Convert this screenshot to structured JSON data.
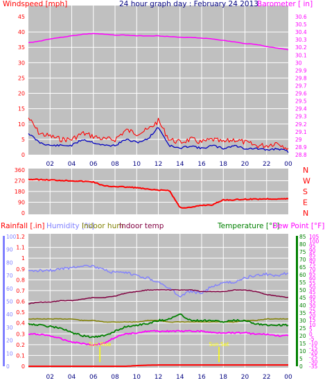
{
  "title": "24 hour graph day : February 24 2013",
  "colors": {
    "bg": "#ffffff",
    "plot": "#c0c0c0",
    "grid": "#ffffff",
    "wind_gust": "#ff0000",
    "wind_avg": "#0000c0",
    "barometer": "#ff00ff",
    "direction": "#ff0000",
    "rain": "#ff0000",
    "humidity": "#8080ff",
    "indoor_hum": "#808000",
    "indoor_temp": "#800040",
    "temperature": "#008000",
    "dew_point": "#ff00ff",
    "tick_text": "#000080",
    "sun_marker": "#ffff00"
  },
  "time_labels": [
    "02",
    "04",
    "06",
    "08",
    "10",
    "12",
    "14",
    "16",
    "18",
    "20",
    "22",
    "00"
  ],
  "wind_panel": {
    "left_label": "Windspeed [mph]",
    "right_label": "Barometer [ in]",
    "left_ticks": [
      "0",
      "5",
      "10",
      "15",
      "20",
      "25",
      "30",
      "35",
      "40",
      "45"
    ],
    "right_ticks": [
      "28.8",
      "28.9",
      "29",
      "29.1",
      "29.2",
      "29.3",
      "29.4",
      "29.5",
      "29.6",
      "29.7",
      "29.8",
      "29.9",
      "30",
      "30.1",
      "30.2",
      "30.3",
      "30.4",
      "30.5",
      "30.6"
    ]
  },
  "direction_panel": {
    "left_ticks": [
      "0",
      "90",
      "180",
      "270",
      "360"
    ],
    "compass": [
      "N",
      "W",
      "S",
      "E",
      "N"
    ]
  },
  "lower_panel": {
    "labels": {
      "rain": "Rainfall [.in]",
      "humidity": "Humidity [%]",
      "indoor_hum": "Indoor hum",
      "indoor_temp": "Indoor temp",
      "temperature": "Temperature [°F]",
      "dew_point": "Dew Point [°F]"
    },
    "rain_ticks": [
      "0",
      "0.1",
      "0.2",
      "0.3",
      "0.4",
      "0.5",
      "0.6",
      "0.7",
      "0.8",
      "0.9",
      "1",
      "1.1",
      "1.2"
    ],
    "hum_ticks": [
      "0",
      "10",
      "20",
      "30",
      "40",
      "50",
      "60",
      "70",
      "80",
      "90",
      "100"
    ],
    "temp_ticks": [
      "0",
      "5",
      "10",
      "15",
      "20",
      "25",
      "30",
      "35",
      "40",
      "45",
      "50",
      "55",
      "60",
      "65",
      "70",
      "75",
      "80",
      "85"
    ],
    "dew_ticks": [
      "-35",
      "-30",
      "-25",
      "-20",
      "-15",
      "-10",
      "-5",
      "0",
      "5",
      "10",
      "15",
      "20",
      "25",
      "30",
      "35",
      "40",
      "45",
      "50",
      "55",
      "60",
      "65",
      "70",
      "75",
      "80",
      "85",
      "90",
      "95",
      "100",
      "105"
    ],
    "sun_rise_label": "Sun Rise",
    "sun_set_label": "Sun Set",
    "sun_rise_hour": 6.6,
    "sun_set_hour": 17.6
  },
  "chart_data": [
    {
      "type": "line",
      "title": "24 hour graph day : February 24 2013",
      "xlabel": "",
      "x": [
        0,
        1,
        2,
        3,
        4,
        5,
        6,
        7,
        8,
        9,
        10,
        11,
        12,
        13,
        14,
        15,
        16,
        17,
        18,
        19,
        20,
        21,
        22,
        23,
        24
      ],
      "series": [
        {
          "name": "Windspeed",
          "axis": "wind",
          "values": [
            7,
            4,
            3,
            3,
            3,
            5,
            4,
            3,
            3,
            5,
            4,
            5,
            9,
            3,
            2,
            3,
            2,
            3,
            2,
            3,
            2,
            2,
            1.5,
            2,
            1
          ]
        },
        {
          "name": "Wind gust",
          "axis": "wind",
          "values": [
            12,
            7,
            6,
            5,
            5,
            7,
            6,
            5,
            5,
            8,
            7,
            8,
            11,
            5,
            4,
            5,
            4,
            5,
            4,
            5,
            4,
            3,
            3,
            4,
            2
          ]
        },
        {
          "name": "Barometer",
          "axis": "baro",
          "values": [
            30.26,
            30.28,
            30.31,
            30.33,
            30.35,
            30.37,
            30.38,
            30.37,
            30.36,
            30.36,
            30.35,
            30.35,
            30.35,
            30.34,
            30.33,
            30.33,
            30.32,
            30.31,
            30.29,
            30.27,
            30.25,
            30.24,
            30.21,
            30.19,
            30.17
          ]
        }
      ],
      "ylim_left": [
        0,
        45
      ],
      "ylim_right": [
        28.8,
        30.6
      ]
    },
    {
      "type": "line",
      "xlabel": "",
      "x": [
        0,
        2,
        4,
        6,
        7,
        8,
        10,
        11,
        12,
        13,
        14,
        15,
        16,
        17,
        18,
        19,
        20,
        22,
        24
      ],
      "series": [
        {
          "name": "Wind direction",
          "values": [
            282,
            276,
            270,
            260,
            225,
            222,
            212,
            198,
            190,
            190,
            45,
            45,
            65,
            68,
            110,
            110,
            115,
            118,
            118
          ]
        }
      ],
      "ylim": [
        0,
        360
      ]
    },
    {
      "type": "line",
      "xlabel": "",
      "x": [
        0,
        1,
        2,
        3,
        4,
        5,
        6,
        7,
        8,
        9,
        10,
        11,
        12,
        13,
        14,
        15,
        16,
        17,
        18,
        19,
        20,
        21,
        22,
        23,
        24
      ],
      "series": [
        {
          "name": "Humidity",
          "axis": "hum",
          "values": [
            73,
            74,
            74,
            75,
            76,
            78,
            77,
            74,
            72,
            72,
            70,
            68,
            65,
            60,
            54,
            58,
            56,
            62,
            64,
            65,
            68,
            70,
            71,
            70,
            72
          ]
        },
        {
          "name": "Indoor hum",
          "axis": "temp",
          "values": [
            31,
            31,
            31,
            31,
            31,
            30,
            30,
            29,
            29,
            29,
            29,
            30,
            30,
            29,
            29,
            29,
            29,
            29,
            29,
            29,
            30,
            30,
            31,
            31,
            31
          ]
        },
        {
          "name": "Indoor temp",
          "axis": "temp",
          "values": [
            41,
            42,
            42,
            43,
            43,
            44,
            45,
            45,
            46,
            48,
            49,
            50,
            50,
            50,
            50,
            50,
            49,
            49,
            49,
            50,
            50,
            49,
            47,
            46,
            45
          ]
        },
        {
          "name": "Temperature",
          "axis": "temp",
          "values": [
            28,
            27,
            26,
            25,
            22,
            20,
            19,
            20,
            23,
            26,
            27,
            28,
            30,
            31,
            34,
            30,
            30,
            30,
            29,
            30,
            30,
            28,
            27,
            27,
            27
          ]
        },
        {
          "name": "Dew Point",
          "axis": "temp",
          "values": [
            21,
            21,
            20,
            18,
            16,
            15,
            14,
            15,
            19,
            21,
            22,
            23,
            23,
            23,
            23,
            23,
            23,
            22,
            22,
            22,
            22,
            21,
            21,
            20,
            20
          ]
        },
        {
          "name": "Rainfall",
          "axis": "rain",
          "values": [
            0,
            0,
            0,
            0,
            0,
            0,
            0,
            0,
            0,
            0,
            0.006,
            0.01,
            0.012,
            0.012,
            0.012,
            0.012,
            0.012,
            0.012,
            0.012,
            0.012,
            0.012,
            0.012,
            0.012,
            0.012,
            0.012
          ]
        }
      ],
      "ylim_rain": [
        0,
        1.2
      ],
      "ylim_hum": [
        0,
        100
      ],
      "ylim_temp": [
        0,
        85
      ]
    }
  ]
}
